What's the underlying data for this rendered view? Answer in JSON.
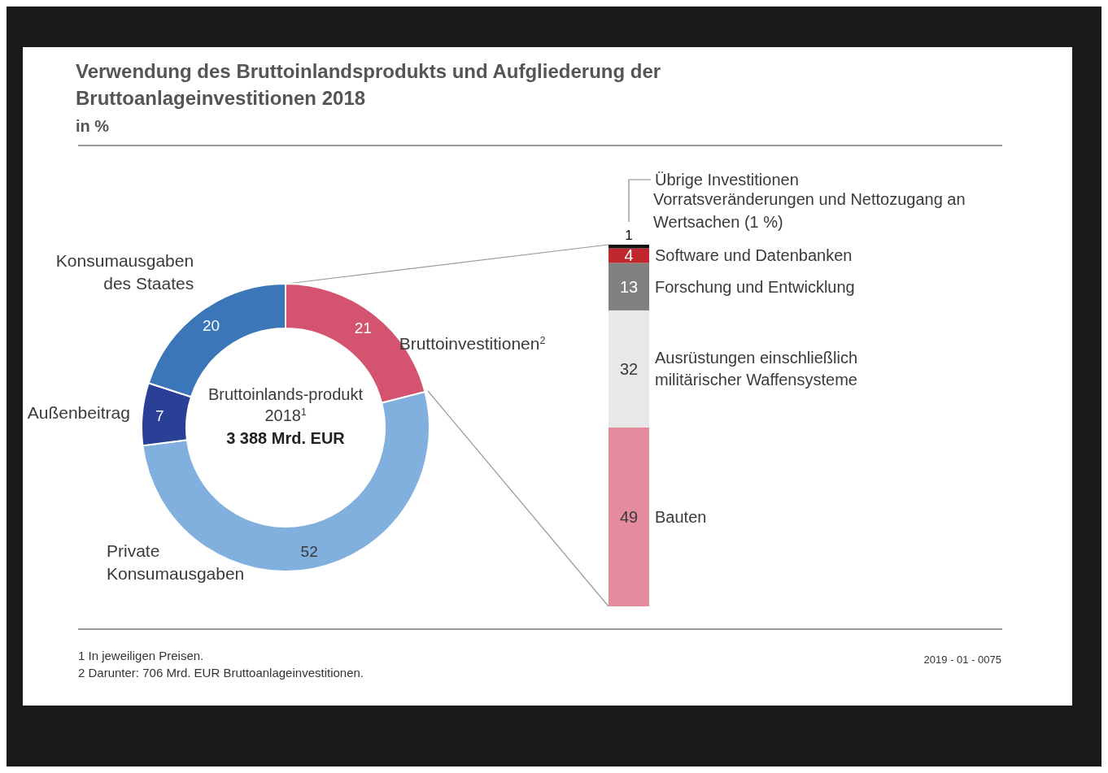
{
  "chart_data": [
    {
      "type": "donut",
      "title": "Verwendung des Bruttoinlandsprodukts und Aufgliederung der Bruttoanlageinvestitionen 2018",
      "subtitle": "in %",
      "categories": [
        "Bruttoinvestitionen$^{2}$",
        "Private Konsumausgaben",
        "Außenbeitrag",
        "Konsumausgaben des Staates"
      ],
      "values": [
        21,
        52,
        7,
        20
      ],
      "colors": [
        "#d4546f",
        "#82b0de",
        "#2a3f96",
        "#3a76b8"
      ],
      "data_labels": true,
      "annotations": [
        "Bruttoinlands-produkt 2018$^{1}$",
        "3 388 Mrd. EUR",
        "1 In jeweiligen Preisen.",
        "2 Darunter: 706 Mrd. EUR Bruttoanlageinvestitionen.",
        "2019 - 01 - 0075"
      ]
    },
    {
      "type": "bar",
      "stacked": true,
      "categories": [
        null
      ],
      "data_labels": true,
      "series": [
        {
          "name": "Bauten",
          "color": "#e58ba0",
          "values": [
            49
          ]
        },
        {
          "name": "Ausrüstungen einschließlich militärischer Waffensysteme",
          "color": "#e8e8e8",
          "values": [
            32
          ]
        },
        {
          "name": "Forschung und Entwicklung",
          "color": "#808080",
          "values": [
            13
          ]
        },
        {
          "name": "Software und Datenbanken",
          "color": "#c0272d",
          "values": [
            4
          ]
        },
        {
          "name": "Übrige Investitionen",
          "color": "#111111",
          "values": [
            1
          ]
        }
      ],
      "annotations": [
        "Vorratsveränderungen und Nettozugang an Wertsachen (1 %)"
      ]
    }
  ]
}
